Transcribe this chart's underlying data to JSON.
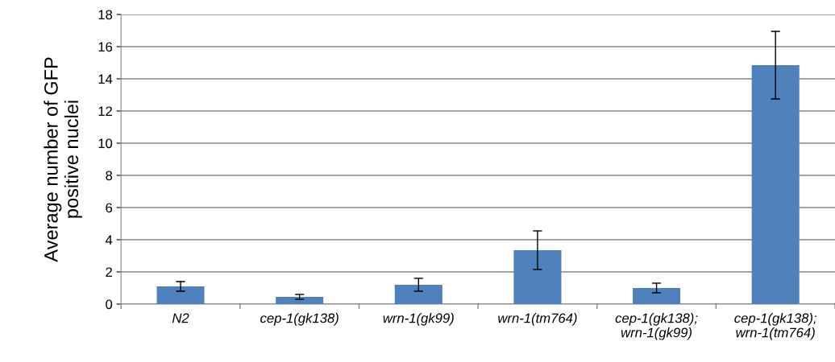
{
  "chart_data": {
    "type": "bar",
    "ylabel": "Average number of GFP\npositive nuclei",
    "categories": [
      "N2",
      "cep-1(gk138)",
      "wrn-1(gk99)",
      "wrn-1(tm764)",
      "cep-1(gk138);\nwrn-1(gk99)",
      "cep-1(gk138);\nwrn-1(tm764)"
    ],
    "values": [
      1.1,
      0.45,
      1.2,
      3.35,
      1.0,
      14.85
    ],
    "errors": [
      0.3,
      0.15,
      0.4,
      1.2,
      0.3,
      2.1
    ],
    "color": "#4f81bd",
    "ylim": [
      0,
      18
    ],
    "yticks": [
      0,
      2,
      4,
      6,
      8,
      10,
      12,
      14,
      16,
      18
    ],
    "grid": "y"
  }
}
